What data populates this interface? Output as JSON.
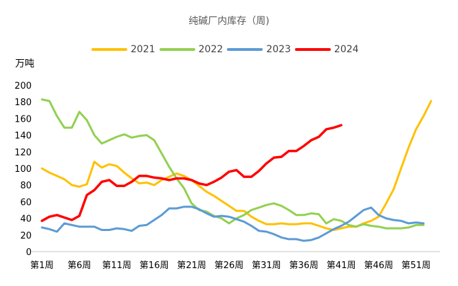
{
  "chart_data": {
    "type": "line",
    "title": "纯碱厂内库存（周)",
    "unit_label": "万吨",
    "ylim": [
      0,
      200
    ],
    "yticks": [
      0,
      20,
      40,
      60,
      80,
      100,
      120,
      140,
      160,
      180,
      200
    ],
    "x_tick_labels": [
      "第1周",
      "第6周",
      "第11周",
      "第16周",
      "第21周",
      "第26周",
      "第31周",
      "第36周",
      "第41周",
      "第46周",
      "第51周"
    ],
    "x_tick_weeks": [
      1,
      6,
      11,
      16,
      21,
      26,
      31,
      36,
      41,
      46,
      51
    ],
    "grid": false,
    "legend_position": "top",
    "series": [
      {
        "name": "2021",
        "color": "#FFC000",
        "values": [
          100,
          95,
          91,
          87,
          80,
          78,
          81,
          108,
          101,
          105,
          103,
          95,
          88,
          82,
          83,
          80,
          86,
          90,
          94,
          91,
          86,
          79,
          72,
          67,
          61,
          55,
          49,
          49,
          42,
          37,
          33,
          33,
          34,
          33,
          33,
          34,
          34,
          31,
          28,
          26,
          28,
          30,
          30,
          34,
          37,
          42,
          58,
          75,
          100,
          125,
          147,
          163,
          181
        ]
      },
      {
        "name": "2022",
        "color": "#92D050",
        "values": [
          183,
          181,
          163,
          149,
          149,
          168,
          158,
          140,
          130,
          134,
          138,
          141,
          137,
          139,
          140,
          134,
          118,
          102,
          88,
          76,
          58,
          50,
          48,
          43,
          40,
          34,
          40,
          44,
          50,
          53,
          56,
          58,
          55,
          50,
          44,
          44,
          46,
          45,
          34,
          39,
          37,
          32,
          30,
          33,
          31,
          30,
          28,
          28,
          28,
          29,
          32,
          32
        ]
      },
      {
        "name": "2023",
        "color": "#5B9BD5",
        "values": [
          29,
          27,
          24,
          34,
          32,
          30,
          30,
          30,
          26,
          26,
          28,
          27,
          25,
          31,
          32,
          38,
          44,
          52,
          52,
          54,
          54,
          51,
          46,
          42,
          43,
          42,
          39,
          36,
          31,
          25,
          24,
          21,
          17,
          15,
          15,
          13,
          14,
          17,
          22,
          27,
          31,
          36,
          43,
          50,
          53,
          44,
          40,
          38,
          37,
          34,
          35,
          34
        ]
      },
      {
        "name": "2024",
        "color": "#FF0000",
        "values": [
          37,
          42,
          44,
          41,
          38,
          43,
          68,
          74,
          84,
          86,
          79,
          79,
          84,
          91,
          91,
          89,
          88,
          86,
          88,
          88,
          86,
          82,
          80,
          84,
          89,
          96,
          98,
          90,
          90,
          97,
          106,
          113,
          114,
          121,
          121,
          127,
          134,
          138,
          147,
          149,
          152
        ]
      }
    ]
  }
}
